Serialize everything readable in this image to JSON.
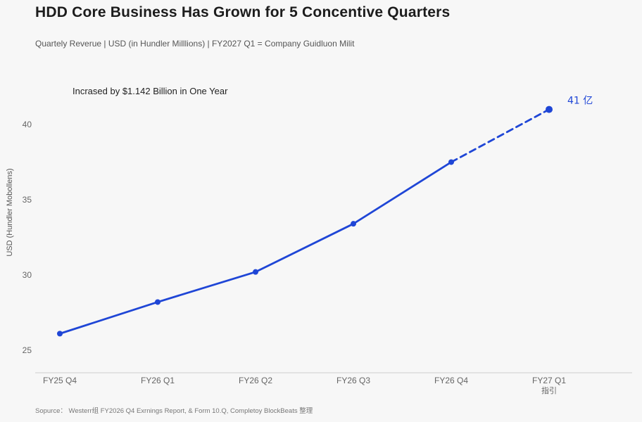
{
  "header": {
    "title": "HDD Core Business Has Grown for 5 Concentive Quarters",
    "subtitle": "Quartely Reverue | USD (in Hundler Milllions) | FY2027 Q1 = Company Guidluon Milit"
  },
  "footer": {
    "source": "Sopurce： Westerr组 FY2026 Q4 Exrnings Report, & Form 10.Q, Completoy BlockBeats 整理"
  },
  "colors": {
    "series": "#1f46d6",
    "annotation": "#1f46d6",
    "axis": "#cccccc"
  },
  "chart_data": {
    "type": "line",
    "categories": [
      "FY25 Q4",
      "FY26 Q1",
      "FY26 Q2",
      "FY26 Q3",
      "FY26 Q4",
      "FY27 Q1"
    ],
    "category_sublabels": [
      "",
      "",
      "",
      "",
      "",
      "指引"
    ],
    "series": [
      {
        "values": [
          26.1,
          28.2,
          30.2,
          33.4,
          37.5,
          41.0
        ],
        "projected_from_index": 4
      }
    ],
    "ylabel": "USD (Hundler Mobollens)",
    "ylim": [
      23.5,
      45
    ],
    "yticks": [
      25,
      30,
      35,
      40
    ],
    "annotations": [
      {
        "text": "Incrased by $1.142 Billion in One Year"
      },
      {
        "text": "41 亿",
        "at_index": 5
      }
    ],
    "grid": false
  }
}
